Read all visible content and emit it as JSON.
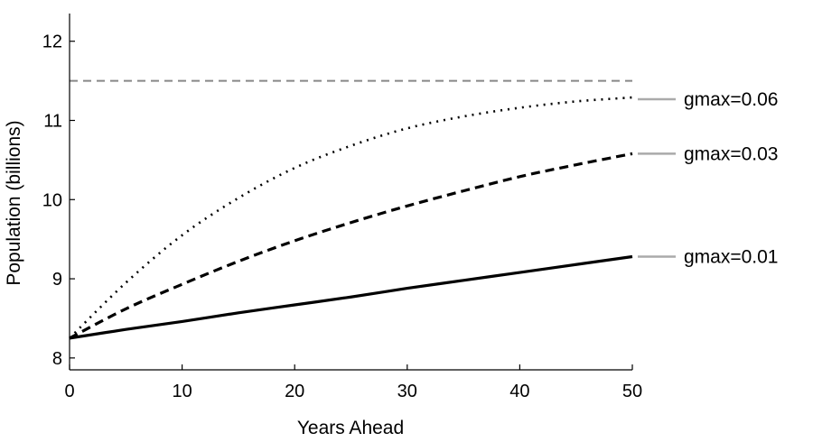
{
  "chart_data": {
    "type": "line",
    "title": "",
    "xlabel": "Years Ahead",
    "ylabel": "Population (billions)",
    "xlim": [
      0,
      50
    ],
    "ylim": [
      7.85,
      12.35
    ],
    "xticks": [
      0,
      10,
      20,
      30,
      40,
      50
    ],
    "xtick_labels": [
      "0",
      "10",
      "20",
      "30",
      "40",
      "50"
    ],
    "yticks": [
      8,
      9,
      10,
      11,
      12
    ],
    "ytick_labels": [
      "8",
      "9",
      "10",
      "11",
      "12"
    ],
    "grid": false,
    "legend": "inline labels at right end of lines",
    "reference_line": {
      "y": 11.5,
      "style": "dashed",
      "color": "#888888"
    },
    "label_connector_color": "#aaaaaa",
    "line_color": "#000000",
    "x": [
      0,
      5,
      10,
      15,
      20,
      25,
      30,
      35,
      40,
      45,
      50
    ],
    "series": [
      {
        "name": "gmax=0.06",
        "style": "dotted",
        "values": [
          8.25,
          8.95,
          9.55,
          10.02,
          10.4,
          10.68,
          10.9,
          11.05,
          11.16,
          11.24,
          11.29
        ]
      },
      {
        "name": "gmax=0.03",
        "style": "dashed",
        "values": [
          8.25,
          8.62,
          8.93,
          9.22,
          9.48,
          9.71,
          9.92,
          10.11,
          10.29,
          10.44,
          10.58
        ]
      },
      {
        "name": "gmax=0.01",
        "style": "solid",
        "values": [
          8.25,
          8.36,
          8.46,
          8.57,
          8.67,
          8.77,
          8.88,
          8.98,
          9.08,
          9.18,
          9.28
        ]
      }
    ]
  }
}
